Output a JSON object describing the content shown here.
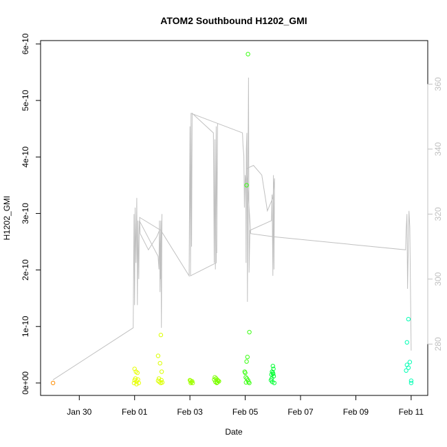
{
  "chart_data": {
    "type": "scatter",
    "title": "ATOM2 Southbound H1202_GMI",
    "xlabel": "Date",
    "ylabel": "H1202_GMI",
    "x_ticks": [
      {
        "label": "Jan 30",
        "value": -2
      },
      {
        "label": "Feb 01",
        "value": 0
      },
      {
        "label": "Feb 03",
        "value": 2
      },
      {
        "label": "Feb 05",
        "value": 4
      },
      {
        "label": "Feb 07",
        "value": 6
      },
      {
        "label": "Feb 09",
        "value": 8
      },
      {
        "label": "Feb 11",
        "value": 10
      }
    ],
    "xlim": [
      -3.4,
      10.6
    ],
    "y_ticks": [
      {
        "label": "0e+00",
        "value": 0
      },
      {
        "label": "1e-10",
        "value": 1
      },
      {
        "label": "2e-10",
        "value": 2
      },
      {
        "label": "3e-10",
        "value": 3
      },
      {
        "label": "4e-10",
        "value": 4
      },
      {
        "label": "5e-10",
        "value": 5
      },
      {
        "label": "6e-10",
        "value": 6
      }
    ],
    "ylim": [
      -0.22,
      6.06
    ],
    "y2_ticks": [
      {
        "label": "280",
        "value": 280
      },
      {
        "label": "300",
        "value": 300
      },
      {
        "label": "320",
        "value": 320
      },
      {
        "label": "340",
        "value": 340
      },
      {
        "label": "360",
        "value": 360
      }
    ],
    "y2lim": [
      264.2,
      373.4
    ],
    "grid": false,
    "line_series": {
      "color": "#c0c0c0",
      "points": [
        [
          -2.95,
          269
        ],
        [
          -0.05,
          285
        ],
        [
          -0.02,
          320
        ],
        [
          0.0,
          292
        ],
        [
          0.02,
          322
        ],
        [
          0.05,
          305
        ],
        [
          0.08,
          325
        ],
        [
          0.1,
          292
        ],
        [
          0.12,
          318
        ],
        [
          0.15,
          300
        ],
        [
          0.17,
          318
        ],
        [
          0.85,
          307
        ],
        [
          0.88,
          303
        ],
        [
          0.9,
          318
        ],
        [
          0.92,
          296
        ],
        [
          0.95,
          318
        ],
        [
          0.97,
          285
        ],
        [
          0.99,
          320
        ],
        [
          0.95,
          300
        ],
        [
          0.9,
          315
        ],
        [
          0.8,
          313
        ],
        [
          0.5,
          309
        ],
        [
          0.2,
          314
        ],
        [
          0.18,
          319
        ],
        [
          0.95,
          315
        ],
        [
          1.97,
          301
        ],
        [
          2.0,
          347
        ],
        [
          2.02,
          305
        ],
        [
          2.04,
          348
        ],
        [
          2.06,
          310
        ],
        [
          2.08,
          351
        ],
        [
          2.85,
          345
        ],
        [
          2.88,
          305
        ],
        [
          2.9,
          343
        ],
        [
          2.92,
          303
        ],
        [
          2.95,
          347
        ],
        [
          2.97,
          308
        ],
        [
          3.0,
          348
        ],
        [
          2.95,
          305
        ],
        [
          2.02,
          301
        ],
        [
          2.04,
          351
        ],
        [
          3.9,
          345
        ],
        [
          3.92,
          341
        ],
        [
          3.95,
          338
        ],
        [
          3.97,
          322
        ],
        [
          4.0,
          332
        ],
        [
          4.02,
          330
        ],
        [
          4.03,
          305
        ],
        [
          4.04,
          340
        ],
        [
          4.06,
          345
        ],
        [
          4.08,
          293
        ],
        [
          4.1,
          335
        ],
        [
          4.12,
          362
        ],
        [
          4.14,
          302
        ],
        [
          4.17,
          315
        ],
        [
          4.95,
          318
        ],
        [
          4.97,
          326
        ],
        [
          5.0,
          301
        ],
        [
          5.02,
          332
        ],
        [
          5.04,
          303
        ],
        [
          5.06,
          331
        ],
        [
          5.0,
          325
        ],
        [
          4.8,
          321
        ],
        [
          4.6,
          332
        ],
        [
          4.3,
          335
        ],
        [
          4.05,
          334
        ],
        [
          4.2,
          314
        ],
        [
          5.05,
          313
        ],
        [
          9.8,
          309
        ],
        [
          9.82,
          315
        ],
        [
          9.85,
          320
        ],
        [
          9.87,
          297
        ],
        [
          9.9,
          312
        ],
        [
          9.92,
          321
        ],
        [
          9.95,
          316
        ],
        [
          10.0,
          278
        ]
      ]
    },
    "scatter_points": [
      {
        "x": -2.95,
        "y": 0.0,
        "color": "#ff8c00"
      },
      {
        "x": 0.0,
        "y": 0.25,
        "color": "#e6ff00"
      },
      {
        "x": 0.05,
        "y": 0.2,
        "color": "#e6ff00"
      },
      {
        "x": 0.1,
        "y": 0.18,
        "color": "#e6ff00"
      },
      {
        "x": 0.0,
        "y": 0.05,
        "color": "#e6ff00"
      },
      {
        "x": 0.08,
        "y": 0.03,
        "color": "#e6ff00"
      },
      {
        "x": -0.02,
        "y": 0.0,
        "color": "#e6ff00"
      },
      {
        "x": 0.15,
        "y": 0.0,
        "color": "#e6ff00"
      },
      {
        "x": 0.12,
        "y": 0.06,
        "color": "#e6ff00"
      },
      {
        "x": 0.03,
        "y": 0.08,
        "color": "#e6ff00"
      },
      {
        "x": 0.07,
        "y": -0.02,
        "color": "#e6ff00"
      },
      {
        "x": 0.85,
        "y": 0.48,
        "color": "#dcff00"
      },
      {
        "x": 0.95,
        "y": 0.85,
        "color": "#dcff00"
      },
      {
        "x": 0.92,
        "y": 0.35,
        "color": "#dcff00"
      },
      {
        "x": 0.98,
        "y": 0.2,
        "color": "#dcff00"
      },
      {
        "x": 0.88,
        "y": 0.08,
        "color": "#dcff00"
      },
      {
        "x": 0.9,
        "y": 0.02,
        "color": "#dcff00"
      },
      {
        "x": 0.95,
        "y": 0.0,
        "color": "#dcff00"
      },
      {
        "x": 0.97,
        "y": 0.05,
        "color": "#dcff00"
      },
      {
        "x": 0.85,
        "y": 0.04,
        "color": "#dcff00"
      },
      {
        "x": 1.0,
        "y": 0.01,
        "color": "#dcff00"
      },
      {
        "x": 2.0,
        "y": 0.05,
        "color": "#a0ff00"
      },
      {
        "x": 2.05,
        "y": 0.02,
        "color": "#a0ff00"
      },
      {
        "x": 2.1,
        "y": 0.0,
        "color": "#a0ff00"
      },
      {
        "x": 2.02,
        "y": 0.04,
        "color": "#a0ff00"
      },
      {
        "x": 2.08,
        "y": 0.03,
        "color": "#a0ff00"
      },
      {
        "x": 2.03,
        "y": 0.0,
        "color": "#a0ff00"
      },
      {
        "x": 2.9,
        "y": 0.1,
        "color": "#7cff00"
      },
      {
        "x": 2.95,
        "y": 0.08,
        "color": "#7cff00"
      },
      {
        "x": 3.0,
        "y": 0.05,
        "color": "#7cff00"
      },
      {
        "x": 2.92,
        "y": 0.02,
        "color": "#7cff00"
      },
      {
        "x": 2.97,
        "y": 0.0,
        "color": "#7cff00"
      },
      {
        "x": 3.05,
        "y": 0.03,
        "color": "#7cff00"
      },
      {
        "x": 2.88,
        "y": 0.06,
        "color": "#7cff00"
      },
      {
        "x": 2.99,
        "y": 0.01,
        "color": "#7cff00"
      },
      {
        "x": 3.02,
        "y": 0.04,
        "color": "#7cff00"
      },
      {
        "x": 4.1,
        "y": 5.82,
        "color": "#3cff14"
      },
      {
        "x": 4.05,
        "y": 3.5,
        "color": "#3cff14"
      },
      {
        "x": 4.08,
        "y": 0.46,
        "color": "#3cff14"
      },
      {
        "x": 4.05,
        "y": 0.38,
        "color": "#3cff14"
      },
      {
        "x": 3.98,
        "y": 0.2,
        "color": "#3cff14"
      },
      {
        "x": 4.0,
        "y": 0.18,
        "color": "#3cff14"
      },
      {
        "x": 4.02,
        "y": 0.1,
        "color": "#3cff14"
      },
      {
        "x": 4.06,
        "y": 0.08,
        "color": "#3cff14"
      },
      {
        "x": 4.1,
        "y": 0.05,
        "color": "#3cff14"
      },
      {
        "x": 4.12,
        "y": 0.02,
        "color": "#3cff14"
      },
      {
        "x": 4.15,
        "y": 0.0,
        "color": "#3cff14"
      },
      {
        "x": 4.15,
        "y": 0.9,
        "color": "#3cff14"
      },
      {
        "x": 4.03,
        "y": 0.01,
        "color": "#3cff14"
      },
      {
        "x": 5.0,
        "y": 0.3,
        "color": "#00ff32"
      },
      {
        "x": 5.02,
        "y": 0.25,
        "color": "#00ff32"
      },
      {
        "x": 4.97,
        "y": 0.2,
        "color": "#00ff32"
      },
      {
        "x": 5.0,
        "y": 0.18,
        "color": "#00ff32"
      },
      {
        "x": 4.95,
        "y": 0.15,
        "color": "#00ff32"
      },
      {
        "x": 5.03,
        "y": 0.12,
        "color": "#00ff32"
      },
      {
        "x": 4.96,
        "y": 0.08,
        "color": "#00ff32"
      },
      {
        "x": 4.93,
        "y": 0.05,
        "color": "#00ff32"
      },
      {
        "x": 4.98,
        "y": 0.02,
        "color": "#00ff32"
      },
      {
        "x": 5.05,
        "y": 0.0,
        "color": "#00ff32"
      },
      {
        "x": 5.01,
        "y": 0.16,
        "color": "#00ff32"
      },
      {
        "x": 9.9,
        "y": 1.13,
        "color": "#00ffb4"
      },
      {
        "x": 9.85,
        "y": 0.72,
        "color": "#00ffb4"
      },
      {
        "x": 9.95,
        "y": 0.37,
        "color": "#00ffb4"
      },
      {
        "x": 9.85,
        "y": 0.32,
        "color": "#00ffb4"
      },
      {
        "x": 9.9,
        "y": 0.27,
        "color": "#00ffb4"
      },
      {
        "x": 9.82,
        "y": 0.22,
        "color": "#00ffb4"
      },
      {
        "x": 10.0,
        "y": 0.04,
        "color": "#00ffb4"
      },
      {
        "x": 10.0,
        "y": 0.0,
        "color": "#00ffb4"
      }
    ]
  }
}
